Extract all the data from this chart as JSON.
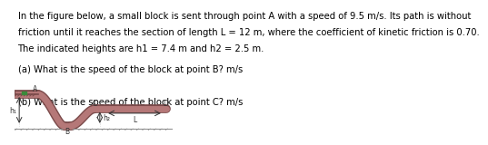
{
  "text_lines": [
    "In the figure below, a small block is sent through point A with a speed of 9.5 m/s. Its path is without",
    "friction until it reaches the section of length L = 12 m, where the coefficient of kinetic friction is 0.70.",
    "The indicated heights are h1 = 7.4 m and h2 = 2.5 m."
  ],
  "question_a": "(a) What is the speed of the block at point B? m/s",
  "question_b": "(b) What is the speed of the block at point C? m/s",
  "track_color": "#b57878",
  "track_edge_color": "#7a4a4a",
  "block_color": "#3a8a3a",
  "label_color": "#333333",
  "bg_color": "#ffffff",
  "text_fontsize": 7.2,
  "label_fontsize": 5.5
}
